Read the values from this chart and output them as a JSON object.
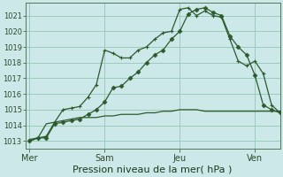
{
  "bg_color": "#cce8e8",
  "grid_color": "#99ccbb",
  "line_color": "#2d5a2d",
  "xlabel": "Pression niveau de la mer( hPa )",
  "xlabel_fontsize": 8,
  "ylim": [
    1012.5,
    1021.8
  ],
  "yticks": [
    1013,
    1014,
    1015,
    1016,
    1017,
    1018,
    1019,
    1020,
    1021
  ],
  "xtick_labels": [
    "Mer",
    "Sam",
    "Jeu",
    "Ven"
  ],
  "xtick_positions": [
    0,
    9,
    18,
    27
  ],
  "xlim": [
    -0.5,
    30
  ],
  "n_points": 31,
  "series1_x": [
    0,
    1,
    2,
    3,
    4,
    5,
    6,
    7,
    8,
    9,
    10,
    11,
    12,
    13,
    14,
    15,
    16,
    17,
    18,
    19,
    20,
    21,
    22,
    23,
    24,
    25,
    26,
    27,
    28,
    29,
    30
  ],
  "series1_y": [
    1013.0,
    1013.2,
    1013.3,
    1014.2,
    1015.0,
    1015.1,
    1015.2,
    1015.8,
    1016.6,
    1018.8,
    1018.6,
    1018.3,
    1018.3,
    1018.8,
    1019.0,
    1019.5,
    1019.9,
    1020.0,
    1021.4,
    1021.5,
    1021.0,
    1021.3,
    1021.0,
    1020.9,
    1019.5,
    1018.1,
    1017.8,
    1018.1,
    1017.3,
    1015.3,
    1014.8
  ],
  "series2_x": [
    0,
    1,
    2,
    3,
    4,
    5,
    6,
    7,
    8,
    9,
    10,
    11,
    12,
    13,
    14,
    15,
    16,
    17,
    18,
    19,
    20,
    21,
    22,
    23,
    24,
    25,
    26,
    27,
    28,
    29,
    30
  ],
  "series2_y": [
    1013.0,
    1013.2,
    1013.2,
    1014.1,
    1014.2,
    1014.3,
    1014.4,
    1014.7,
    1015.0,
    1015.5,
    1016.4,
    1016.5,
    1017.0,
    1017.4,
    1018.0,
    1018.5,
    1018.8,
    1019.5,
    1020.0,
    1021.1,
    1021.4,
    1021.5,
    1021.2,
    1021.0,
    1019.7,
    1019.0,
    1018.5,
    1017.2,
    1015.3,
    1015.0,
    1014.8
  ],
  "series3_x": [
    0,
    1,
    2,
    3,
    4,
    5,
    6,
    7,
    8,
    9,
    10,
    11,
    12,
    13,
    14,
    15,
    16,
    17,
    18,
    19,
    20,
    21,
    22,
    23,
    24,
    25,
    26,
    27,
    28,
    29,
    30
  ],
  "series3_y": [
    1013.1,
    1013.2,
    1014.1,
    1014.2,
    1014.3,
    1014.4,
    1014.5,
    1014.5,
    1014.5,
    1014.6,
    1014.6,
    1014.7,
    1014.7,
    1014.7,
    1014.8,
    1014.8,
    1014.9,
    1014.9,
    1015.0,
    1015.0,
    1015.0,
    1014.9,
    1014.9,
    1014.9,
    1014.9,
    1014.9,
    1014.9,
    1014.9,
    1014.9,
    1014.9,
    1014.9
  ],
  "ytick_fontsize": 6,
  "xtick_fontsize": 7
}
